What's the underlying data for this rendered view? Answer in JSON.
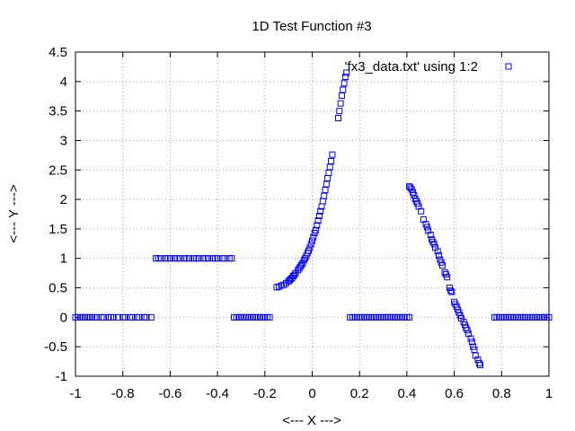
{
  "chart_data": {
    "type": "scatter",
    "title": "1D Test Function #3",
    "xlabel": "<--- X --->",
    "ylabel": "<--- Y --->",
    "xlim": [
      -1,
      1
    ],
    "ylim": [
      -1,
      4.5
    ],
    "xticks": [
      "-1",
      "-0.8",
      "-0.6",
      "-0.4",
      "-0.2",
      "0",
      "0.2",
      "0.4",
      "0.6",
      "0.8",
      "1"
    ],
    "yticks": [
      "-1",
      "-0.5",
      "0",
      "0.5",
      "1",
      "1.5",
      "2",
      "2.5",
      "3",
      "3.5",
      "4",
      "4.5"
    ],
    "grid": true,
    "legend_position": "top-right",
    "marker": "open-square",
    "color": "#0000ff",
    "series": [
      {
        "name": "'fx3_data.txt' using 1:2",
        "points": [
          [
            -1.0,
            0
          ],
          [
            -0.99,
            0
          ],
          [
            -0.98,
            0
          ],
          [
            -0.97,
            0
          ],
          [
            -0.96,
            0
          ],
          [
            -0.95,
            0
          ],
          [
            -0.94,
            0
          ],
          [
            -0.93,
            0
          ],
          [
            -0.92,
            0
          ],
          [
            -0.91,
            0
          ],
          [
            -0.89,
            0
          ],
          [
            -0.88,
            0
          ],
          [
            -0.86,
            0
          ],
          [
            -0.85,
            0
          ],
          [
            -0.84,
            0
          ],
          [
            -0.82,
            0
          ],
          [
            -0.8,
            0
          ],
          [
            -0.79,
            0
          ],
          [
            -0.77,
            0
          ],
          [
            -0.76,
            0
          ],
          [
            -0.74,
            0
          ],
          [
            -0.73,
            0
          ],
          [
            -0.71,
            0
          ],
          [
            -0.7,
            0
          ],
          [
            -0.68,
            0
          ],
          [
            -0.66,
            1
          ],
          [
            -0.65,
            1
          ],
          [
            -0.64,
            1
          ],
          [
            -0.62,
            1
          ],
          [
            -0.61,
            1
          ],
          [
            -0.6,
            1
          ],
          [
            -0.58,
            1
          ],
          [
            -0.57,
            1
          ],
          [
            -0.56,
            1
          ],
          [
            -0.54,
            1
          ],
          [
            -0.53,
            1
          ],
          [
            -0.52,
            1
          ],
          [
            -0.5,
            1
          ],
          [
            -0.49,
            1
          ],
          [
            -0.48,
            1
          ],
          [
            -0.46,
            1
          ],
          [
            -0.45,
            1
          ],
          [
            -0.44,
            1
          ],
          [
            -0.42,
            1
          ],
          [
            -0.41,
            1
          ],
          [
            -0.4,
            1
          ],
          [
            -0.38,
            1
          ],
          [
            -0.37,
            1
          ],
          [
            -0.35,
            1
          ],
          [
            -0.34,
            1
          ],
          [
            -0.33,
            0
          ],
          [
            -0.32,
            0
          ],
          [
            -0.31,
            0
          ],
          [
            -0.3,
            0
          ],
          [
            -0.29,
            0
          ],
          [
            -0.28,
            0
          ],
          [
            -0.27,
            0
          ],
          [
            -0.26,
            0
          ],
          [
            -0.25,
            0
          ],
          [
            -0.24,
            0
          ],
          [
            -0.23,
            0
          ],
          [
            -0.22,
            0
          ],
          [
            -0.21,
            0
          ],
          [
            -0.2,
            0
          ],
          [
            -0.19,
            0
          ],
          [
            -0.18,
            0
          ],
          [
            -0.15,
            0.51
          ],
          [
            -0.14,
            0.52
          ],
          [
            -0.13,
            0.54
          ],
          [
            -0.12,
            0.55
          ],
          [
            -0.11,
            0.58
          ],
          [
            -0.1,
            0.61
          ],
          [
            -0.095,
            0.63
          ],
          [
            -0.09,
            0.65
          ],
          [
            -0.085,
            0.67
          ],
          [
            -0.08,
            0.7
          ],
          [
            -0.075,
            0.72
          ],
          [
            -0.07,
            0.75
          ],
          [
            -0.06,
            0.8
          ],
          [
            -0.055,
            0.83
          ],
          [
            -0.05,
            0.86
          ],
          [
            -0.045,
            0.89
          ],
          [
            -0.04,
            0.92
          ],
          [
            -0.035,
            0.97
          ],
          [
            -0.03,
            1.0
          ],
          [
            -0.025,
            1.04
          ],
          [
            -0.02,
            1.09
          ],
          [
            -0.015,
            1.13
          ],
          [
            -0.01,
            1.18
          ],
          [
            -0.005,
            1.24
          ],
          [
            0.0,
            1.3
          ],
          [
            0.005,
            1.36
          ],
          [
            0.01,
            1.43
          ],
          [
            0.015,
            1.48
          ],
          [
            0.02,
            1.56
          ],
          [
            0.025,
            1.64
          ],
          [
            0.03,
            1.72
          ],
          [
            0.035,
            1.8
          ],
          [
            0.04,
            1.88
          ],
          [
            0.045,
            1.97
          ],
          [
            0.05,
            2.06
          ],
          [
            0.055,
            2.16
          ],
          [
            0.06,
            2.26
          ],
          [
            0.065,
            2.36
          ],
          [
            0.07,
            2.45
          ],
          [
            0.075,
            2.55
          ],
          [
            0.08,
            2.65
          ],
          [
            0.085,
            2.76
          ],
          [
            0.11,
            3.38
          ],
          [
            0.115,
            3.5
          ],
          [
            0.12,
            3.63
          ],
          [
            0.125,
            3.76
          ],
          [
            0.13,
            3.86
          ],
          [
            0.135,
            3.97
          ],
          [
            0.14,
            4.08
          ],
          [
            0.145,
            4.15
          ],
          [
            0.16,
            0
          ],
          [
            0.17,
            0
          ],
          [
            0.18,
            0
          ],
          [
            0.19,
            0
          ],
          [
            0.2,
            0
          ],
          [
            0.21,
            0
          ],
          [
            0.22,
            0
          ],
          [
            0.23,
            0
          ],
          [
            0.24,
            0
          ],
          [
            0.25,
            0
          ],
          [
            0.26,
            0
          ],
          [
            0.27,
            0
          ],
          [
            0.28,
            0
          ],
          [
            0.29,
            0
          ],
          [
            0.3,
            0
          ],
          [
            0.31,
            0
          ],
          [
            0.32,
            0
          ],
          [
            0.33,
            0
          ],
          [
            0.34,
            0
          ],
          [
            0.35,
            0
          ],
          [
            0.36,
            0
          ],
          [
            0.37,
            0
          ],
          [
            0.38,
            0
          ],
          [
            0.39,
            0
          ],
          [
            0.4,
            0
          ],
          [
            0.41,
            0
          ],
          [
            0.41,
            2.22
          ],
          [
            0.415,
            2.2
          ],
          [
            0.42,
            2.17
          ],
          [
            0.425,
            2.12
          ],
          [
            0.43,
            2.07
          ],
          [
            0.435,
            2.01
          ],
          [
            0.44,
            1.97
          ],
          [
            0.445,
            1.93
          ],
          [
            0.45,
            1.88
          ],
          [
            0.46,
            1.8
          ],
          [
            0.47,
            1.66
          ],
          [
            0.48,
            1.58
          ],
          [
            0.485,
            1.53
          ],
          [
            0.49,
            1.47
          ],
          [
            0.5,
            1.4
          ],
          [
            0.505,
            1.32
          ],
          [
            0.51,
            1.28
          ],
          [
            0.515,
            1.24
          ],
          [
            0.52,
            1.18
          ],
          [
            0.53,
            1.12
          ],
          [
            0.535,
            1.05
          ],
          [
            0.54,
            0.98
          ],
          [
            0.545,
            0.93
          ],
          [
            0.55,
            0.88
          ],
          [
            0.56,
            0.76
          ],
          [
            0.565,
            0.73
          ],
          [
            0.57,
            0.68
          ],
          [
            0.58,
            0.5
          ],
          [
            0.585,
            0.45
          ],
          [
            0.59,
            0.43
          ],
          [
            0.6,
            0.26
          ],
          [
            0.605,
            0.22
          ],
          [
            0.61,
            0.18
          ],
          [
            0.615,
            0.13
          ],
          [
            0.62,
            0.08
          ],
          [
            0.625,
            0.03
          ],
          [
            0.63,
            -0.02
          ],
          [
            0.64,
            -0.08
          ],
          [
            0.645,
            -0.13
          ],
          [
            0.65,
            -0.18
          ],
          [
            0.655,
            -0.22
          ],
          [
            0.66,
            -0.28
          ],
          [
            0.67,
            -0.36
          ],
          [
            0.675,
            -0.42
          ],
          [
            0.68,
            -0.5
          ],
          [
            0.685,
            -0.55
          ],
          [
            0.69,
            -0.65
          ],
          [
            0.7,
            -0.72
          ],
          [
            0.705,
            -0.78
          ],
          [
            0.71,
            -0.81
          ],
          [
            0.77,
            0
          ],
          [
            0.78,
            0
          ],
          [
            0.79,
            0
          ],
          [
            0.8,
            0
          ],
          [
            0.81,
            0
          ],
          [
            0.82,
            0
          ],
          [
            0.83,
            0
          ],
          [
            0.84,
            0
          ],
          [
            0.85,
            0
          ],
          [
            0.86,
            0
          ],
          [
            0.87,
            0
          ],
          [
            0.88,
            0
          ],
          [
            0.89,
            0
          ],
          [
            0.9,
            0
          ],
          [
            0.91,
            0
          ],
          [
            0.92,
            0
          ],
          [
            0.93,
            0
          ],
          [
            0.94,
            0
          ],
          [
            0.95,
            0
          ],
          [
            0.96,
            0
          ],
          [
            0.97,
            0
          ],
          [
            0.98,
            0
          ],
          [
            0.99,
            0
          ],
          [
            1.0,
            0
          ]
        ]
      }
    ]
  }
}
